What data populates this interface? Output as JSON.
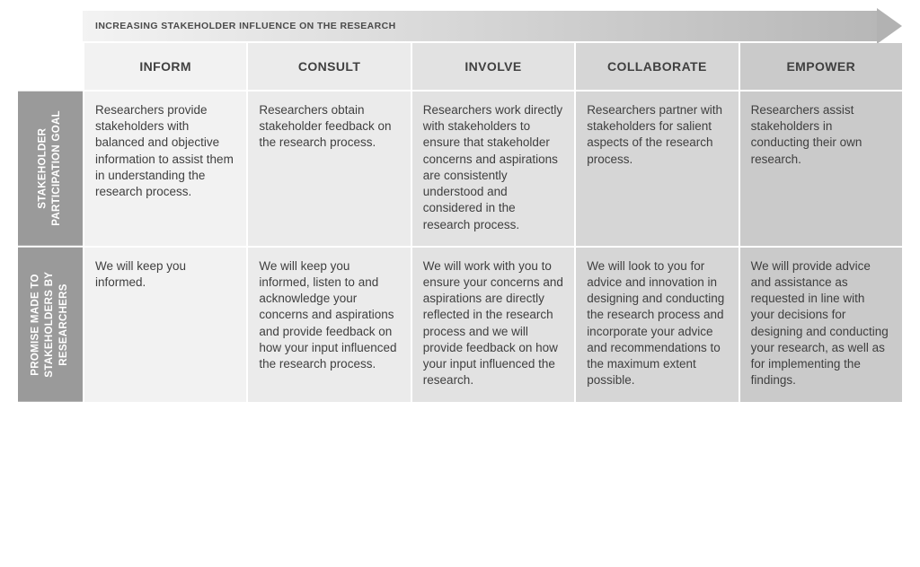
{
  "arrow": {
    "label": "INCREASING STAKEHOLDER INFLUENCE ON THE RESEARCH",
    "gradient_start": "#f3f3f3",
    "gradient_end": "#b7b7b7",
    "head_color": "#b2b2b2",
    "head_width": 28,
    "head_height": 40
  },
  "columns": [
    {
      "label": "INFORM",
      "header_bg": "#f2f2f2",
      "body_bg": "#f2f2f2"
    },
    {
      "label": "CONSULT",
      "header_bg": "#ebebeb",
      "body_bg": "#ebebeb"
    },
    {
      "label": "INVOLVE",
      "header_bg": "#e2e2e2",
      "body_bg": "#e2e2e2"
    },
    {
      "label": "COLLABORATE",
      "header_bg": "#d6d6d6",
      "body_bg": "#d6d6d6"
    },
    {
      "label": "EMPOWER",
      "header_bg": "#cacaca",
      "body_bg": "#cacaca"
    }
  ],
  "rows": [
    {
      "key": "goal",
      "side_label": "STAKEHOLDER\nPARTICIPATION GOAL",
      "side_bg": "#9a9a9a",
      "cells": [
        "Researchers provide stakeholders with balanced and objective information to assist them in understanding the research process.",
        "Researchers obtain stakeholder feedback on the research process.",
        "Researchers work directly with stakeholders to ensure that stakeholder concerns and aspirations are consistently understood and considered in the research process.",
        "Researchers partner with stakeholders for salient aspects of the research process.",
        "Researchers assist stakeholders in conducting their own research."
      ]
    },
    {
      "key": "promise",
      "side_label": "PROMISE MADE TO\nSTAKEHOLDERS BY\nRESEARCHERS",
      "side_bg": "#9a9a9a",
      "cells": [
        "We will keep you informed.",
        "We will keep you informed, listen to and acknowledge your concerns and aspirations and provide feedback on how your input influenced the research process.",
        "We will work with you to ensure your concerns and aspirations are directly reflected in the research process and we will provide feedback on how your input influenced the research.",
        "We will look to you for advice and innovation in designing and conducting the research process and incorporate your advice and recommendations to the maximum extent possible.",
        "We will provide advice and assistance as requested in line with your decisions for designing and conducting your research, as well as for implementing the findings."
      ]
    }
  ],
  "style": {
    "text_color": "#3f3f3f",
    "side_text_color": "#ffffff",
    "gap_color": "#ffffff",
    "header_font_size": 14,
    "body_font_size": 13.5,
    "side_font_size": 11.5
  }
}
